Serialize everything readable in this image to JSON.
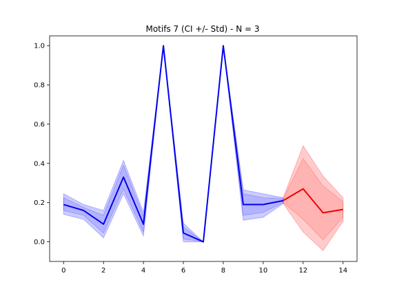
{
  "chart_data": {
    "type": "line",
    "title": "Motifs 7 (CI +/- Std) - N = 3",
    "xlabel": "",
    "ylabel": "",
    "xlim": [
      -0.7,
      14.7
    ],
    "ylim": [
      -0.1,
      1.05
    ],
    "xticks": [
      0,
      2,
      4,
      6,
      8,
      10,
      12,
      14
    ],
    "yticks": [
      0.0,
      0.2,
      0.4,
      0.6,
      0.8,
      1.0
    ],
    "grid": false,
    "legend": "none",
    "series": [
      {
        "color": "#0000ee",
        "band_color": "#0000ff",
        "x": [
          0,
          1,
          2,
          3,
          4,
          5,
          6,
          7,
          8,
          9,
          10,
          11
        ],
        "mean": [
          0.19,
          0.16,
          0.09,
          0.33,
          0.09,
          1.0,
          0.045,
          0.0,
          1.0,
          0.19,
          0.19,
          0.21
        ],
        "upper": [
          0.245,
          0.19,
          0.16,
          0.415,
          0.15,
          1.0,
          0.095,
          0.0,
          1.0,
          0.265,
          0.245,
          0.225
        ],
        "lower": [
          0.14,
          0.115,
          0.02,
          0.245,
          0.03,
          1.0,
          0.0,
          0.0,
          1.0,
          0.11,
          0.125,
          0.195
        ],
        "inner_upper": [
          0.225,
          0.175,
          0.135,
          0.39,
          0.13,
          1.0,
          0.075,
          0.0,
          1.0,
          0.245,
          0.225,
          0.22
        ],
        "inner_lower": [
          0.16,
          0.135,
          0.045,
          0.27,
          0.05,
          1.0,
          0.015,
          0.0,
          1.0,
          0.135,
          0.15,
          0.2
        ]
      },
      {
        "color": "#ee0000",
        "band_color": "#ff0000",
        "x": [
          11,
          12,
          13,
          14
        ],
        "mean": [
          0.21,
          0.27,
          0.148,
          0.165
        ],
        "upper": [
          0.225,
          0.49,
          0.335,
          0.225
        ],
        "lower": [
          0.195,
          0.05,
          -0.045,
          0.105
        ],
        "inner_upper": [
          0.22,
          0.425,
          0.285,
          0.205
        ],
        "inner_lower": [
          0.2,
          0.115,
          0.01,
          0.125
        ]
      }
    ]
  }
}
